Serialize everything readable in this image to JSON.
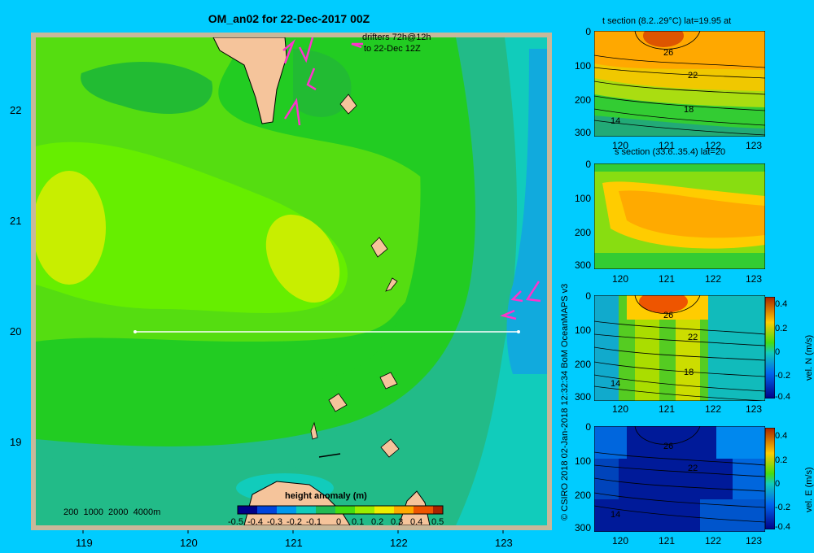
{
  "page": {
    "background": "#00ccff"
  },
  "main_map": {
    "title": "OM_an02 for 22-Dec-2017 00Z",
    "drifters_label": [
      "drifters 72h@12h",
      "to 22-Dec 12Z"
    ],
    "depth_legend": "200  1000  2000  4000m",
    "x_ticks": [
      "119",
      "120",
      "121",
      "122",
      "123"
    ],
    "y_ticks": [
      "22",
      "21",
      "20",
      "19"
    ],
    "colorbar_title": "height anomaly (m)",
    "colorbar_ticks": [
      "-0.5",
      "-0.4",
      "-0.3",
      "-0.2",
      "-0.1",
      "0",
      "0.1",
      "0.2",
      "0.3",
      "0.4",
      "0.5"
    ],
    "credit": "© CSIRO 2018   02-Jan-2018 12:32:34 BoM OceanMAPS v3",
    "colors": {
      "land": "#f5c49b",
      "drifter": "#ff33cc",
      "section_line": "#ffffff"
    }
  },
  "sections": [
    {
      "title": "t section (8.2..29°C) lat=19.95 at",
      "contour_labels": [
        "26",
        "22",
        "18",
        "14"
      ],
      "colorbar": false
    },
    {
      "title": "s section (33.6..35.4) lat=20",
      "contour_labels": [],
      "colorbar": false
    },
    {
      "title": "",
      "contour_labels": [
        "26",
        "22",
        "18",
        "14"
      ],
      "colorbar": true,
      "colorbar_label": "vel. N  (m/s)"
    },
    {
      "title": "",
      "contour_labels": [
        "26",
        "22",
        "14"
      ],
      "colorbar": true,
      "colorbar_label": "vel. E  (m/s)"
    }
  ],
  "section_axes": {
    "x_ticks": [
      "120",
      "121",
      "122",
      "123"
    ],
    "y_ticks": [
      "0",
      "100",
      "200",
      "300"
    ],
    "cb_ticks": [
      "0.4",
      "0.2",
      "0",
      "-0.2",
      "-0.4"
    ]
  },
  "chart_data": [
    {
      "type": "heatmap",
      "title": "OM_an02 for 22-Dec-2017 00Z",
      "xlabel": "",
      "ylabel": "",
      "xlim": [
        118.5,
        123.5
      ],
      "ylim": [
        18.3,
        22.7
      ],
      "x_ticks": [
        119,
        120,
        121,
        122,
        123
      ],
      "y_ticks": [
        19,
        20,
        21,
        22
      ],
      "colorbar": {
        "label": "height anomaly (m)",
        "range": [
          -0.5,
          0.5
        ]
      },
      "section_line": {
        "lon": [
          119.5,
          123.2
        ],
        "lat": [
          20.0,
          20.0
        ]
      }
    },
    {
      "type": "heatmap",
      "title": "t section (8.2..29°C) lat=19.95 at",
      "xlim": [
        119.5,
        123.2
      ],
      "ylim": [
        300,
        0
      ],
      "x_ticks": [
        120,
        121,
        122,
        123
      ],
      "y_ticks": [
        0,
        100,
        200,
        300
      ],
      "contour_levels": [
        26,
        22,
        18,
        14
      ]
    },
    {
      "type": "heatmap",
      "title": "s section (33.6..35.4) lat=20",
      "xlim": [
        119.5,
        123.2
      ],
      "ylim": [
        300,
        0
      ],
      "x_ticks": [
        120,
        121,
        122,
        123
      ],
      "y_ticks": [
        0,
        100,
        200,
        300
      ]
    },
    {
      "type": "heatmap",
      "title": "",
      "xlim": [
        119.5,
        123.2
      ],
      "ylim": [
        300,
        0
      ],
      "x_ticks": [
        120,
        121,
        122,
        123
      ],
      "y_ticks": [
        0,
        100,
        200,
        300
      ],
      "colorbar": {
        "label": "vel. N  (m/s)",
        "range": [
          -0.4,
          0.4
        ]
      },
      "contour_levels": [
        26,
        22,
        18,
        14
      ]
    },
    {
      "type": "heatmap",
      "title": "",
      "xlim": [
        119.5,
        123.2
      ],
      "ylim": [
        300,
        0
      ],
      "x_ticks": [
        120,
        121,
        122,
        123
      ],
      "y_ticks": [
        0,
        100,
        200,
        300
      ],
      "colorbar": {
        "label": "vel. E  (m/s)",
        "range": [
          -0.4,
          0.4
        ]
      },
      "contour_levels": [
        26,
        22,
        14
      ]
    }
  ]
}
